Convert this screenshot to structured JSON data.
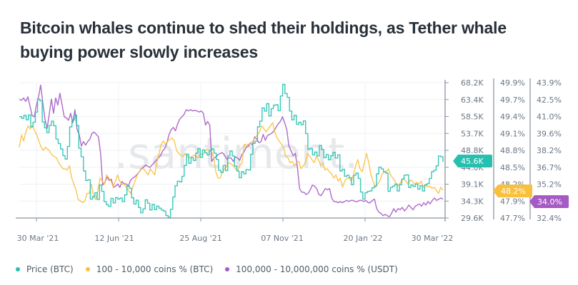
{
  "title": "Bitcoin whales continue to shed their holdings, as Tether whale buying power slowly increases",
  "watermark": ".santiment.",
  "colors": {
    "price": "#26c0b0",
    "btc_holders": "#f9c03d",
    "usdt_holders": "#a55ac4",
    "grid": "#eef0f3",
    "axis": "#8a95a0"
  },
  "chart_data": {
    "type": "line",
    "title": "Bitcoin whales continue to shed their holdings, as Tether whale buying power slowly increases",
    "xlabel": "",
    "ylabel": "",
    "x_range": [
      "2021-03-10",
      "2022-04-03"
    ],
    "x_ticks": [
      "30 Mar '21",
      "12 Jun '21",
      "25 Aug '21",
      "07 Nov '21",
      "20 Jan '22",
      "30 Mar '22"
    ],
    "grid": true,
    "legend_position": "bottom-left",
    "axes": [
      {
        "id": "price",
        "ticks": [
          "68.2K",
          "63.4K",
          "58.5K",
          "53.7K",
          "48.8K",
          "44.0K",
          "39.1K",
          "34.3K",
          "29.6K"
        ],
        "range": [
          29600,
          68200
        ]
      },
      {
        "id": "btc_holders",
        "ticks": [
          "49.9%",
          "49.7%",
          "49.4%",
          "49.1%",
          "48.8%",
          "48.5%",
          "48.2%",
          "47.9%",
          "47.7%"
        ],
        "range": [
          47.7,
          49.9
        ]
      },
      {
        "id": "usdt_holders",
        "ticks": [
          "43.9%",
          "42.5%",
          "41.0%",
          "39.6%",
          "38.2%",
          "36.7%",
          "35.2%",
          "34.0%",
          "32.4%"
        ],
        "range": [
          32.4,
          43.9
        ]
      }
    ],
    "series": [
      {
        "name": "Price (BTC)",
        "axis": "price",
        "current_label": "45.6K",
        "values": [
          58500,
          58000,
          58900,
          57600,
          59000,
          55600,
          56900,
          59800,
          63500,
          63000,
          57000,
          55300,
          54000,
          56000,
          57200,
          55900,
          52100,
          50800,
          49300,
          47400,
          46400,
          50000,
          55600,
          57500,
          59000,
          56000,
          49500,
          47100,
          43000,
          40300,
          40500,
          35000,
          35700,
          36800,
          34900,
          39000,
          37200,
          34300,
          33400,
          32900,
          35200,
          33900,
          35400,
          35000,
          35300,
          34300,
          36200,
          38700,
          38100,
          35400,
          33600,
          34700,
          32600,
          31100,
          32200,
          34800,
          33800,
          31900,
          33500,
          32000,
          33000,
          32400,
          31900,
          31600,
          30300,
          29800,
          32100,
          35600,
          38800,
          40100,
          39900,
          41500,
          44600,
          47800,
          45200,
          46800,
          46000,
          48100,
          49400,
          46900,
          49000,
          48200,
          47600,
          48800,
          49300,
          48100,
          46300,
          43200,
          42600,
          44600,
          43100,
          47300,
          48700,
          47300,
          44400,
          43000,
          41100,
          42800,
          42200,
          43400,
          43300,
          47800,
          50900,
          51500,
          55600,
          57200,
          61000,
          60100,
          62200,
          58700,
          60800,
          61800,
          61900,
          60200,
          64400,
          67700,
          65100,
          64000,
          60100,
          57600,
          58900,
          56300,
          56900,
          56200,
          57300,
          53700,
          49200,
          49400,
          47600,
          48400,
          47300,
          50300,
          49100,
          46800,
          47700,
          46200,
          47400,
          48300,
          46700,
          47600,
          43000,
          43500,
          41500,
          41800,
          41100,
          39100,
          41800,
          42400,
          40900,
          37000,
          35000,
          36800,
          37200,
          37300,
          38200,
          38700,
          42200,
          44100,
          43600,
          42800,
          42400,
          37200,
          38300,
          38700,
          39300,
          37300,
          39100,
          40700,
          41800,
          41900,
          38300,
          39000,
          38600,
          39300,
          37800,
          38800,
          37300,
          39000,
          39400,
          40900,
          42800,
          43200,
          44500,
          47300,
          47100,
          45600
        ]
      },
      {
        "name": "100 - 10,000 coins % (BTC)",
        "axis": "btc_holders",
        "current_label": "48.2%",
        "values": [
          48.85,
          49.05,
          48.95,
          49.1,
          49.2,
          49.15,
          49.2,
          49.12,
          49.05,
          48.95,
          48.85,
          48.8,
          48.85,
          48.82,
          48.78,
          48.72,
          48.7,
          48.68,
          48.6,
          48.55,
          48.5,
          48.5,
          48.48,
          48.55,
          48.35,
          48.25,
          48.15,
          48.0,
          47.98,
          47.95,
          47.98,
          48.1,
          48.1,
          48.25,
          48.05,
          48.0,
          48.15,
          48.35,
          48.3,
          48.25,
          48.4,
          48.35,
          48.3,
          48.2,
          48.3,
          48.4,
          48.3,
          48.25,
          48.25,
          48.2,
          48.15,
          48.1,
          48.2,
          48.3,
          48.4,
          48.45,
          48.5,
          48.5,
          48.45,
          48.4,
          48.5,
          48.45,
          48.4,
          48.6,
          48.75,
          48.9,
          48.95,
          48.9,
          48.95,
          48.98,
          49.0,
          48.95,
          48.8,
          48.75,
          48.72,
          48.7,
          48.75,
          48.7,
          48.68,
          48.7,
          48.72,
          48.7,
          48.68,
          48.75,
          48.72,
          48.78,
          48.82,
          48.8,
          48.78,
          48.7,
          48.45,
          48.35,
          48.35,
          48.45,
          48.5,
          48.55,
          48.6,
          48.58,
          48.55,
          48.5,
          48.48,
          48.55,
          48.6,
          48.9,
          48.88,
          48.9,
          48.92,
          48.95,
          49.0,
          49.05,
          49.1,
          49.2,
          49.15,
          49.1,
          49.15,
          49.2,
          49.25,
          49.1,
          49.0,
          48.95,
          48.9,
          48.85,
          48.7,
          48.68,
          48.6,
          48.62,
          48.55,
          48.6,
          48.62,
          48.5,
          48.55,
          48.6,
          48.75,
          48.7,
          48.65,
          48.6,
          48.7,
          48.65,
          48.55,
          48.6,
          48.48,
          48.5,
          48.45,
          48.42,
          48.35,
          48.4,
          48.3,
          48.35,
          48.2,
          48.3,
          48.35,
          48.35,
          48.3,
          48.4,
          48.55,
          48.65,
          48.5,
          48.45,
          48.6,
          48.75,
          48.6,
          48.4,
          48.3,
          48.2,
          48.25,
          48.3,
          48.4,
          48.45,
          48.45,
          48.5,
          48.4,
          48.35,
          48.3,
          48.22,
          48.25,
          48.3,
          48.35,
          48.3,
          48.25,
          48.32,
          48.3,
          48.25,
          48.28,
          48.25,
          48.3,
          48.2,
          48.25,
          48.2,
          48.22,
          48.18,
          48.2,
          48.15,
          48.1,
          48.2,
          48.15
        ]
      },
      {
        "name": "100,000 - 10,000,000 coins % (USDT)",
        "axis": "usdt_holders",
        "current_label": "34.0%",
        "values": [
          42.5,
          42.4,
          42.6,
          42.3,
          42.7,
          41.9,
          41.1,
          41.0,
          42.0,
          42.7,
          43.7,
          42.2,
          40.8,
          40.0,
          41.2,
          42.5,
          41.3,
          42.6,
          42.0,
          43.0,
          42.0,
          41.0,
          40.9,
          40.7,
          41.3,
          40.5,
          41.6,
          39.9,
          39.5,
          38.5,
          38.9,
          38.6,
          38.9,
          39.1,
          39.6,
          39.7,
          39.5,
          39.3,
          37.9,
          35.2,
          35.4,
          35.9,
          35.6,
          35.7,
          35.0,
          35.1,
          35.3,
          35.0,
          35.5,
          35.3,
          35.3,
          35.1,
          35.6,
          35.8,
          35.9,
          36.1,
          36.3,
          36.6,
          36.7,
          36.9,
          36.8,
          36.7,
          36.9,
          37.1,
          37.3,
          37.5,
          37.7,
          38.1,
          38.3,
          38.8,
          39.5,
          39.9,
          40.1,
          39.8,
          40.4,
          40.8,
          41.0,
          41.2,
          41.6,
          41.5,
          41.6,
          41.5,
          41.55,
          41.5,
          41.4,
          41.5,
          41.3,
          40.3,
          40.6,
          40.3,
          37.2,
          37.5,
          37.6,
          37.8,
          37.9,
          37.95,
          37.7,
          37.4,
          37.5,
          37.5,
          37.2,
          37.6,
          37.5,
          37.3,
          37.8,
          38.0,
          38.4,
          38.5,
          38.8,
          38.6,
          39.3,
          39.1,
          38.8,
          38.9,
          39.5,
          39.0,
          39.4,
          39.5,
          39.6,
          39.8,
          40.1,
          40.4,
          40.6,
          41.0,
          40.5,
          39.9,
          38.5,
          38.1,
          37.7,
          37.9,
          36.7,
          34.9,
          34.6,
          34.6,
          34.4,
          34.5,
          34.8,
          35.2,
          35.1,
          34.9,
          34.4,
          34.3,
          34.6,
          34.9,
          34.8,
          34.9,
          34.1,
          33.8,
          33.8,
          33.7,
          33.8,
          33.7,
          33.8,
          33.9,
          33.8,
          33.9,
          33.9,
          33.8,
          33.8,
          33.9,
          33.9,
          33.8,
          33.9,
          33.7,
          33.7,
          33.9,
          34.0,
          33.2,
          32.9,
          32.8,
          32.6,
          32.7,
          32.6,
          32.5,
          32.8,
          33.2,
          32.9,
          33.2,
          33.1,
          33.3,
          33.0,
          33.2,
          33.5,
          33.3,
          33.1,
          33.4,
          33.5,
          33.6,
          33.4,
          33.7,
          33.5,
          33.8,
          33.6,
          33.9,
          34.1,
          33.9,
          34.0,
          34.1,
          34.0
        ]
      }
    ]
  },
  "legend": [
    {
      "label": "Price (BTC)",
      "color": "#26c0b0"
    },
    {
      "label": "100 - 10,000 coins % (BTC)",
      "color": "#f9c03d"
    },
    {
      "label": "100,000 - 10,000,000 coins % (USDT)",
      "color": "#a55ac4"
    }
  ]
}
